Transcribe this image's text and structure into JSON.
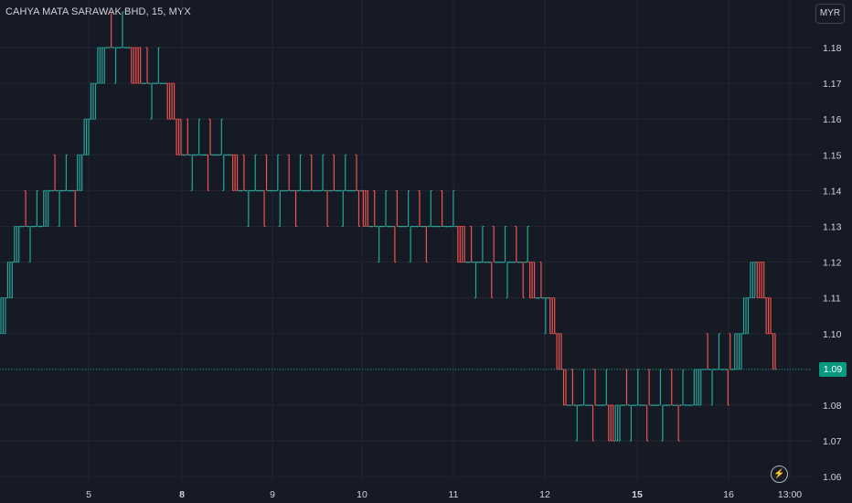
{
  "header": {
    "title": "CAHYA MATA SARAWAK BHD, 15, MYX",
    "currency": "MYR"
  },
  "last_price": "1.09",
  "colors": {
    "up": "#26a69a",
    "down": "#ef5350",
    "grid": "#232632",
    "background": "#161a25",
    "price_line": "#089981"
  },
  "icons": {
    "alert": "lightning-bolt-icon"
  },
  "chart_data": {
    "type": "ohlc",
    "title": "CAHYA MATA SARAWAK BHD, 15, MYX",
    "interval": "15",
    "ylim": [
      1.057,
      1.189
    ],
    "y_ticks": [
      "1.18",
      "1.17",
      "1.16",
      "1.15",
      "1.14",
      "1.13",
      "1.12",
      "1.11",
      "1.10",
      "1.09",
      "1.08",
      "1.07",
      "1.06"
    ],
    "x_ticks": [
      {
        "label": "5",
        "bold": false
      },
      {
        "label": "8",
        "bold": true
      },
      {
        "label": "9",
        "bold": false
      },
      {
        "label": "10",
        "bold": false
      },
      {
        "label": "11",
        "bold": false
      },
      {
        "label": "12",
        "bold": false
      },
      {
        "label": "15",
        "bold": true
      },
      {
        "label": "16",
        "bold": false
      },
      {
        "label": "13:00",
        "bold": false
      }
    ],
    "grid": true,
    "path": [
      {
        "bars": 3,
        "from": 1.1,
        "to": 1.11
      },
      {
        "bars": 3,
        "from": 1.11,
        "to": 1.12
      },
      {
        "bars": 3,
        "from": 1.12,
        "to": 1.13
      },
      {
        "bars": 10,
        "from": 1.13,
        "to": 1.13
      },
      {
        "bars": 3,
        "from": 1.13,
        "to": 1.14
      },
      {
        "bars": 12,
        "from": 1.14,
        "to": 1.14
      },
      {
        "bars": 3,
        "from": 1.14,
        "to": 1.15
      },
      {
        "bars": 3,
        "from": 1.15,
        "to": 1.16
      },
      {
        "bars": 3,
        "from": 1.16,
        "to": 1.17
      },
      {
        "bars": 4,
        "from": 1.17,
        "to": 1.18
      },
      {
        "bars": 12,
        "from": 1.18,
        "to": 1.18
      },
      {
        "bars": 4,
        "from": 1.18,
        "to": 1.17
      },
      {
        "bars": 12,
        "from": 1.17,
        "to": 1.17
      },
      {
        "bars": 3,
        "from": 1.17,
        "to": 1.16
      },
      {
        "bars": 3,
        "from": 1.16,
        "to": 1.15
      },
      {
        "bars": 22,
        "from": 1.15,
        "to": 1.15
      },
      {
        "bars": 3,
        "from": 1.15,
        "to": 1.14
      },
      {
        "bars": 55,
        "from": 1.14,
        "to": 1.14
      },
      {
        "bars": 3,
        "from": 1.14,
        "to": 1.13
      },
      {
        "bars": 40,
        "from": 1.13,
        "to": 1.13
      },
      {
        "bars": 3,
        "from": 1.13,
        "to": 1.12
      },
      {
        "bars": 28,
        "from": 1.12,
        "to": 1.12
      },
      {
        "bars": 3,
        "from": 1.12,
        "to": 1.11
      },
      {
        "bars": 6,
        "from": 1.11,
        "to": 1.11
      },
      {
        "bars": 3,
        "from": 1.11,
        "to": 1.1
      },
      {
        "bars": 3,
        "from": 1.1,
        "to": 1.09
      },
      {
        "bars": 2,
        "from": 1.09,
        "to": 1.08
      },
      {
        "bars": 18,
        "from": 1.08,
        "to": 1.08
      },
      {
        "bars": 3,
        "from": 1.08,
        "to": 1.07
      },
      {
        "bars": 3,
        "from": 1.07,
        "to": 1.08
      },
      {
        "bars": 32,
        "from": 1.08,
        "to": 1.08
      },
      {
        "bars": 4,
        "from": 1.08,
        "to": 1.09
      },
      {
        "bars": 14,
        "from": 1.09,
        "to": 1.09
      },
      {
        "bars": 4,
        "from": 1.09,
        "to": 1.1
      },
      {
        "bars": 3,
        "from": 1.1,
        "to": 1.11
      },
      {
        "bars": 3,
        "from": 1.11,
        "to": 1.12
      },
      {
        "bars": 4,
        "from": 1.12,
        "to": 1.11
      },
      {
        "bars": 3,
        "from": 1.11,
        "to": 1.1
      },
      {
        "bars": 2,
        "from": 1.1,
        "to": 1.09
      }
    ]
  }
}
